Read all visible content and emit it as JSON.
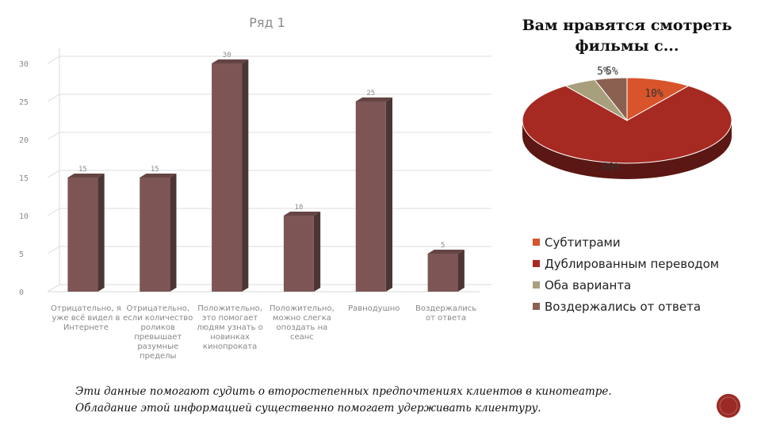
{
  "chart_data": [
    {
      "type": "bar",
      "title": "Ряд 1",
      "categories": [
        "Отрицательно, я уже всё видел в Интернете",
        "Отрицательно, если количество роликов превышает разумные пределы",
        "Положительно, это помогает людям узнать о новинках кинопроката",
        "Положительно, можно слегка опоздать на сеанс",
        "Равнодушно",
        "Воздержались от ответа"
      ],
      "values": [
        15,
        15,
        30,
        10,
        25,
        5
      ],
      "value_labels": [
        "15",
        "15",
        "30",
        "10",
        "25",
        "5"
      ],
      "y_ticks": [
        "0",
        "5",
        "10",
        "15",
        "20",
        "25",
        "30"
      ],
      "ylim": [
        0,
        30
      ],
      "grid": true,
      "style": "3d",
      "color": "#7e5555"
    },
    {
      "type": "pie",
      "title_lines": [
        "Вам нравятся смотреть",
        "фильмы с..."
      ],
      "style": "3d",
      "legend_position": "bottom",
      "slices": [
        {
          "label": "Субтитрами",
          "value": 10,
          "display": "10%",
          "color": "#d9542a"
        },
        {
          "label": "Дублированным переводом",
          "value": 80,
          "display": "80%",
          "color": "#a62a22"
        },
        {
          "label": "Оба варианта",
          "value": 5,
          "display": "5%",
          "color": "#a8a07c"
        },
        {
          "label": "Воздержались от ответа",
          "value": 5,
          "display": "5%",
          "color": "#8a6050"
        }
      ]
    }
  ],
  "footnote": {
    "line1": "Эти данные помогают судить о второстепенных предпочтениях клиентов в кинотеатре.",
    "line2": "Обладание этой информацией существенно помогает удерживать клиентуру."
  },
  "logo_color": "#9b2a25"
}
